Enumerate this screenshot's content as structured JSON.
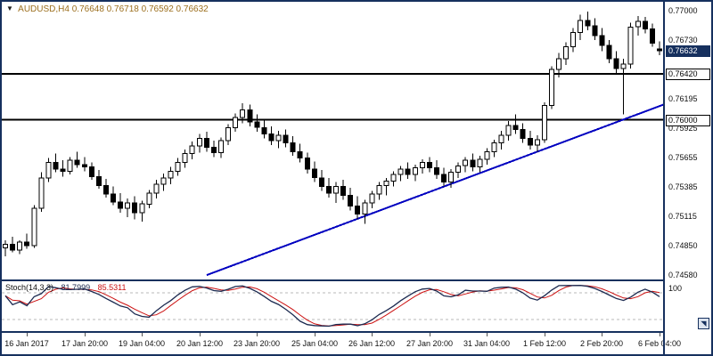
{
  "header": {
    "dropdown_icon": "▼",
    "symbol_period": "AUDUSD,H4",
    "open": "0.76648",
    "high": "0.76718",
    "low": "0.76592",
    "close": "0.76632"
  },
  "icons": {
    "scroll_glyph": "◥"
  },
  "colors": {
    "frame": "#16305e",
    "header_text": "#9c6f1e",
    "bull": "#ffffff",
    "bear": "#000000",
    "candle_outline": "#000000",
    "level_line": "#000000",
    "trendline": "#0000c0",
    "stoch_main": "#1c2a50",
    "stoch_signal": "#cc1111",
    "stoch_level": "#b8b8b8"
  },
  "chart_data": {
    "type": "candlestick",
    "title": "AUDUSD,H4",
    "symbol": "AUDUSD",
    "timeframe": "H4",
    "y_axis": {
      "min": 0.7454,
      "max": 0.7708,
      "ticks": [
        {
          "price": 0.77,
          "label": "0.77000"
        },
        {
          "price": 0.7673,
          "label": "0.76730"
        },
        {
          "price": 0.76195,
          "label": "0.76195"
        },
        {
          "price": 0.75925,
          "label": "0.75925"
        },
        {
          "price": 0.75655,
          "label": "0.75655"
        },
        {
          "price": 0.75385,
          "label": "0.75385"
        },
        {
          "price": 0.75115,
          "label": "0.75115"
        },
        {
          "price": 0.7485,
          "label": "0.74850"
        },
        {
          "price": 0.7458,
          "label": "0.74580"
        }
      ]
    },
    "x_ticks": [
      {
        "bar": 3,
        "label": "16 Jan 2017"
      },
      {
        "bar": 11,
        "label": "17 Jan 20:00"
      },
      {
        "bar": 19,
        "label": "19 Jan 04:00"
      },
      {
        "bar": 27,
        "label": "20 Jan 12:00"
      },
      {
        "bar": 35,
        "label": "23 Jan 20:00"
      },
      {
        "bar": 43,
        "label": "25 Jan 04:00"
      },
      {
        "bar": 51,
        "label": "26 Jan 12:00"
      },
      {
        "bar": 59,
        "label": "27 Jan 20:00"
      },
      {
        "bar": 67,
        "label": "31 Jan 04:00"
      },
      {
        "bar": 75,
        "label": "1 Feb 12:00"
      },
      {
        "bar": 83,
        "label": "2 Feb 20:00"
      },
      {
        "bar": 91,
        "label": "6 Feb 04:00"
      }
    ],
    "levels": [
      {
        "price": 0.7642,
        "label": "0.76420"
      },
      {
        "price": 0.76,
        "label": "0.76000"
      }
    ],
    "current_price": {
      "price": 0.76632,
      "label": "0.76632"
    },
    "trendline": {
      "bar_start": 28,
      "price_start": 0.7458,
      "bar_end": 92,
      "price_end": 0.7615
    },
    "candles": [
      [
        0.7483,
        0.749,
        0.7475,
        0.7486
      ],
      [
        0.7486,
        0.7493,
        0.7479,
        0.7481
      ],
      [
        0.7481,
        0.749,
        0.7477,
        0.7488
      ],
      [
        0.7488,
        0.7496,
        0.7482,
        0.7485
      ],
      [
        0.7485,
        0.7522,
        0.7483,
        0.7519
      ],
      [
        0.7519,
        0.7552,
        0.7516,
        0.7547
      ],
      [
        0.7547,
        0.7565,
        0.7543,
        0.7561
      ],
      [
        0.7561,
        0.7569,
        0.7552,
        0.7555
      ],
      [
        0.7555,
        0.7563,
        0.7548,
        0.7553
      ],
      [
        0.7553,
        0.7566,
        0.755,
        0.7563
      ],
      [
        0.7563,
        0.7571,
        0.7556,
        0.7559
      ],
      [
        0.7559,
        0.7566,
        0.7553,
        0.7557
      ],
      [
        0.7557,
        0.7561,
        0.7545,
        0.7548
      ],
      [
        0.7548,
        0.7554,
        0.7537,
        0.754
      ],
      [
        0.754,
        0.7546,
        0.7529,
        0.7532
      ],
      [
        0.7532,
        0.7539,
        0.7522,
        0.7525
      ],
      [
        0.7525,
        0.7533,
        0.7515,
        0.7519
      ],
      [
        0.7519,
        0.7528,
        0.7511,
        0.7524
      ],
      [
        0.7524,
        0.753,
        0.7509,
        0.7515
      ],
      [
        0.7515,
        0.7526,
        0.7507,
        0.7523
      ],
      [
        0.7523,
        0.7536,
        0.7519,
        0.7533
      ],
      [
        0.7533,
        0.7545,
        0.7528,
        0.7541
      ],
      [
        0.7541,
        0.7551,
        0.7535,
        0.7547
      ],
      [
        0.7547,
        0.7557,
        0.7541,
        0.7553
      ],
      [
        0.7553,
        0.7565,
        0.7549,
        0.7561
      ],
      [
        0.7561,
        0.7573,
        0.7556,
        0.7569
      ],
      [
        0.7569,
        0.758,
        0.7564,
        0.7576
      ],
      [
        0.7576,
        0.7587,
        0.757,
        0.7583
      ],
      [
        0.7583,
        0.7589,
        0.7571,
        0.7575
      ],
      [
        0.7575,
        0.7581,
        0.7566,
        0.757
      ],
      [
        0.757,
        0.7584,
        0.7565,
        0.7581
      ],
      [
        0.7581,
        0.7596,
        0.7577,
        0.7593
      ],
      [
        0.7593,
        0.7606,
        0.7589,
        0.7602
      ],
      [
        0.7602,
        0.7615,
        0.7597,
        0.7609
      ],
      [
        0.7609,
        0.7614,
        0.7594,
        0.7598
      ],
      [
        0.7598,
        0.7605,
        0.7589,
        0.7593
      ],
      [
        0.7593,
        0.76,
        0.7583,
        0.7587
      ],
      [
        0.7587,
        0.7594,
        0.7577,
        0.7581
      ],
      [
        0.7581,
        0.759,
        0.7574,
        0.7586
      ],
      [
        0.7586,
        0.7591,
        0.7575,
        0.7579
      ],
      [
        0.7579,
        0.7585,
        0.7567,
        0.7571
      ],
      [
        0.7571,
        0.7578,
        0.7561,
        0.7565
      ],
      [
        0.7565,
        0.757,
        0.7551,
        0.7555
      ],
      [
        0.7555,
        0.7562,
        0.7543,
        0.7547
      ],
      [
        0.7547,
        0.7554,
        0.7535,
        0.7539
      ],
      [
        0.7539,
        0.7547,
        0.7529,
        0.7533
      ],
      [
        0.7533,
        0.7543,
        0.7524,
        0.7539
      ],
      [
        0.7539,
        0.7545,
        0.7527,
        0.7531
      ],
      [
        0.7531,
        0.7538,
        0.7517,
        0.7521
      ],
      [
        0.7521,
        0.753,
        0.7509,
        0.7514
      ],
      [
        0.7514,
        0.7527,
        0.7505,
        0.7524
      ],
      [
        0.7524,
        0.7535,
        0.7519,
        0.7532
      ],
      [
        0.7532,
        0.7543,
        0.7527,
        0.754
      ],
      [
        0.754,
        0.7547,
        0.7531,
        0.7544
      ],
      [
        0.7544,
        0.7553,
        0.7539,
        0.755
      ],
      [
        0.755,
        0.7558,
        0.7544,
        0.7555
      ],
      [
        0.7555,
        0.7561,
        0.7546,
        0.755
      ],
      [
        0.755,
        0.7559,
        0.7544,
        0.7556
      ],
      [
        0.7556,
        0.7564,
        0.7551,
        0.7561
      ],
      [
        0.7561,
        0.7566,
        0.7552,
        0.7556
      ],
      [
        0.7556,
        0.7563,
        0.7546,
        0.755
      ],
      [
        0.755,
        0.7556,
        0.7539,
        0.7543
      ],
      [
        0.7543,
        0.7555,
        0.7538,
        0.7552
      ],
      [
        0.7552,
        0.7561,
        0.7547,
        0.7558
      ],
      [
        0.7558,
        0.7566,
        0.7552,
        0.7563
      ],
      [
        0.7563,
        0.7569,
        0.7553,
        0.7557
      ],
      [
        0.7557,
        0.7567,
        0.7552,
        0.7564
      ],
      [
        0.7564,
        0.7574,
        0.7559,
        0.7571
      ],
      [
        0.7571,
        0.7582,
        0.7566,
        0.7579
      ],
      [
        0.7579,
        0.759,
        0.7573,
        0.7586
      ],
      [
        0.7586,
        0.7599,
        0.7581,
        0.7595
      ],
      [
        0.7595,
        0.7605,
        0.7587,
        0.7591
      ],
      [
        0.7591,
        0.7597,
        0.7579,
        0.7583
      ],
      [
        0.7583,
        0.759,
        0.7573,
        0.7577
      ],
      [
        0.7577,
        0.7586,
        0.7571,
        0.7582
      ],
      [
        0.7582,
        0.7616,
        0.7579,
        0.7613
      ],
      [
        0.7613,
        0.7649,
        0.761,
        0.7646
      ],
      [
        0.7646,
        0.7661,
        0.7639,
        0.7656
      ],
      [
        0.7656,
        0.7671,
        0.765,
        0.7667
      ],
      [
        0.7667,
        0.7684,
        0.7662,
        0.768
      ],
      [
        0.768,
        0.7696,
        0.7673,
        0.7691
      ],
      [
        0.7691,
        0.7699,
        0.7682,
        0.7686
      ],
      [
        0.7686,
        0.7693,
        0.7673,
        0.7677
      ],
      [
        0.7677,
        0.7684,
        0.7663,
        0.7668
      ],
      [
        0.7668,
        0.7673,
        0.7652,
        0.7656
      ],
      [
        0.7656,
        0.7663,
        0.7642,
        0.7647
      ],
      [
        0.7647,
        0.7656,
        0.7605,
        0.7651
      ],
      [
        0.7651,
        0.7689,
        0.7647,
        0.7685
      ],
      [
        0.7685,
        0.7695,
        0.7677,
        0.769
      ],
      [
        0.769,
        0.7694,
        0.7679,
        0.7683
      ],
      [
        0.7683,
        0.7688,
        0.7667,
        0.767
      ],
      [
        0.76648,
        0.76718,
        0.76592,
        0.76632
      ]
    ],
    "stoch": {
      "name": "Stoch(14,3,3)",
      "k_label": "81.7999",
      "d_label": "85.5311",
      "k_period": 14,
      "d_period": 3,
      "slowing": 3,
      "levels": [
        20,
        80
      ],
      "axis_top_label": "100"
    }
  }
}
